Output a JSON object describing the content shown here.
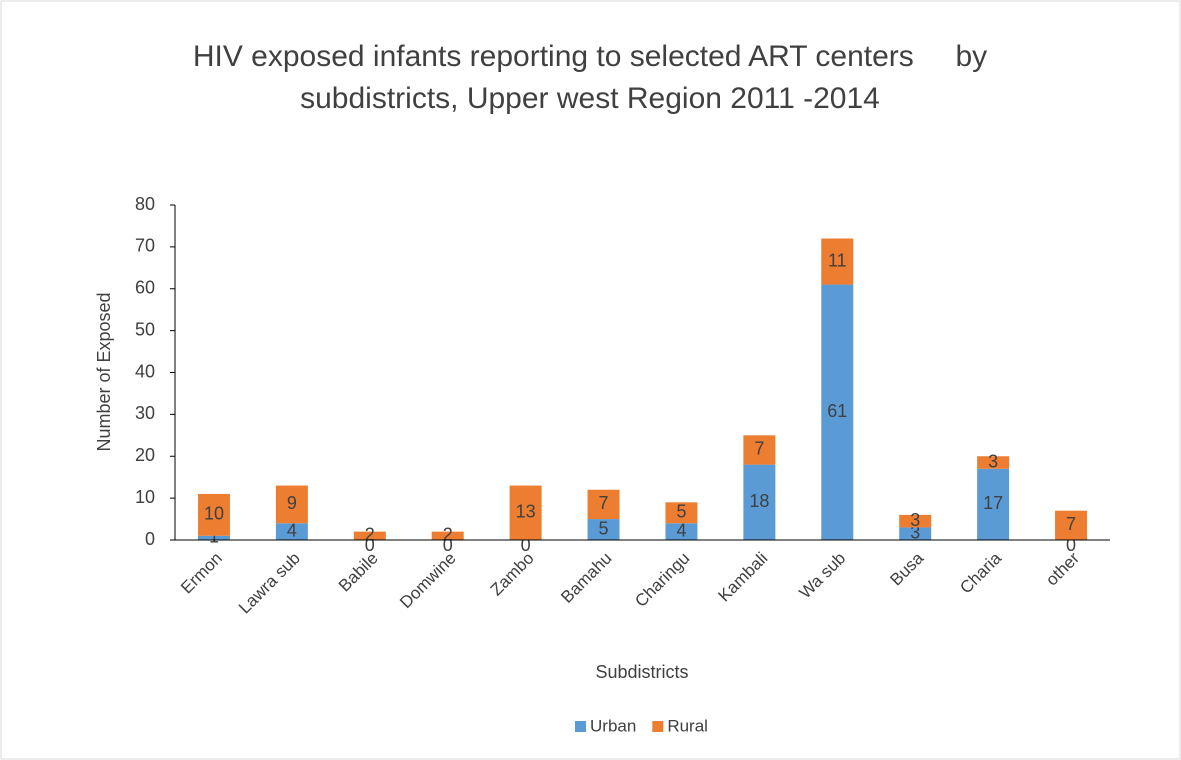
{
  "chart_data": {
    "type": "stacked-bar",
    "title": "HIV exposed infants reporting to selected ART centers     by subdistricts, Upper west Region 2011 -2014",
    "x_label": "Subdistricts",
    "y_label": "Number of Exposed",
    "categories": [
      "Ermon",
      "Lawra sub",
      "Babile",
      "Domwine",
      "Zambo",
      "Bamahu",
      "Charingu",
      "Kambali",
      "Wa sub",
      "Busa",
      "Charia",
      "other"
    ],
    "series": [
      {
        "name": "Urban",
        "color": "#5b9bd5",
        "values": [
          1,
          4,
          0,
          0,
          0,
          5,
          4,
          18,
          61,
          3,
          17,
          0
        ]
      },
      {
        "name": "Rural",
        "color": "#ed7d31",
        "values": [
          10,
          9,
          2,
          2,
          13,
          7,
          5,
          7,
          11,
          3,
          3,
          7
        ]
      }
    ],
    "ylim": [
      0,
      80
    ],
    "yticks": [
      0,
      10,
      20,
      30,
      40,
      50,
      60,
      70,
      80
    ],
    "grid": false,
    "legend": "bottom"
  }
}
